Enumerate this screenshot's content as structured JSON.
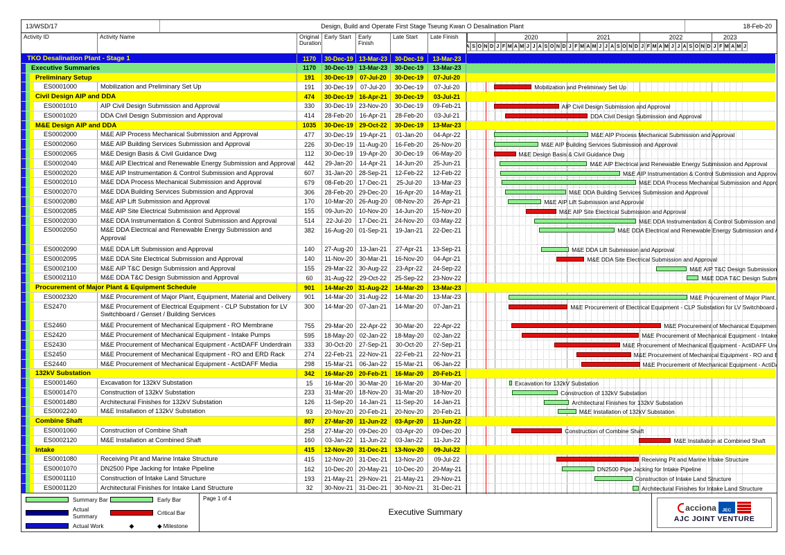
{
  "page_header": {
    "contract_no": "13/WSD/17",
    "title": "Design, Build and Operate First Stage Tseung Kwan O Desalination Plant",
    "data_date": "18-Feb-20"
  },
  "columns": {
    "activity_id": "Activity ID",
    "activity_name": "Activity Name",
    "original_duration": "Original Duration",
    "early_start": "Early Start",
    "early_finish": "Early Finish",
    "late_start": "Late Start",
    "late_finish": "Late Finish"
  },
  "timeline": {
    "years": [
      "2020",
      "2021",
      "2022",
      "2023"
    ],
    "month_letters": [
      "J",
      "F",
      "M",
      "A",
      "M",
      "J",
      "J",
      "A",
      "S",
      "O",
      "N",
      "D"
    ]
  },
  "colors": {
    "critical_bar": "#e01010",
    "early_bar": "#90ee90",
    "band_blue": "#2222dd",
    "band_green": "#7fe97f",
    "band_yellow": "#ffff00",
    "summary_row_blue": "#0d0de0",
    "actual_summary": "#00008b",
    "actual_work": "#1111cc",
    "data_date_line": "#ff0000"
  },
  "rows": [
    {
      "t": "s0",
      "name": "TKO Desalination Plant - Stage 1",
      "dur": "1170",
      "es": "30-Dec-19",
      "ef": "13-Mar-23",
      "ls": "30-Dec-19",
      "lf": "13-Mar-23",
      "h": 1
    },
    {
      "t": "s1",
      "name": "Executive Summaries",
      "dur": "1170",
      "es": "30-Dec-19",
      "ef": "13-Mar-23",
      "ls": "30-Dec-19",
      "lf": "13-Mar-23",
      "h": 1
    },
    {
      "t": "g",
      "name": "Preliminary Setup",
      "dur": "191",
      "es": "30-Dec-19",
      "ef": "07-Jul-20",
      "ls": "30-Dec-19",
      "lf": "07-Jul-20",
      "h": 1
    },
    {
      "t": "a",
      "id": "ES0001000",
      "name": "Mobilization and Preliminary Set Up",
      "dur": "191",
      "es": "30-Dec-19",
      "ef": "07-Jul-20",
      "ls": "30-Dec-19",
      "lf": "07-Jul-20",
      "bar": "red",
      "h": 1
    },
    {
      "t": "g",
      "name": "Civil Design AIP and DDA",
      "dur": "474",
      "es": "30-Dec-19",
      "ef": "16-Apr-21",
      "ls": "30-Dec-19",
      "lf": "03-Jul-21",
      "h": 1
    },
    {
      "t": "a",
      "id": "ES0001010",
      "name": "AIP Civil Design Submission and Approval",
      "dur": "330",
      "es": "30-Dec-19",
      "ef": "23-Nov-20",
      "ls": "30-Dec-19",
      "lf": "09-Feb-21",
      "bar": "red",
      "h": 1
    },
    {
      "t": "a",
      "id": "ES0001020",
      "name": "DDA Civil Design Submission and Approval",
      "dur": "414",
      "es": "28-Feb-20",
      "ef": "16-Apr-21",
      "ls": "28-Feb-20",
      "lf": "03-Jul-21",
      "bar": "red",
      "h": 1
    },
    {
      "t": "g",
      "name": "M&E Design AIP and DDA",
      "dur": "1035",
      "es": "30-Dec-19",
      "ef": "29-Oct-22",
      "ls": "30-Dec-19",
      "lf": "13-Mar-23",
      "h": 1
    },
    {
      "t": "a",
      "id": "ES0002000",
      "name": "M&E AIP Process Mechanical Submission and Approval",
      "dur": "477",
      "es": "30-Dec-19",
      "ef": "19-Apr-21",
      "ls": "01-Jan-20",
      "lf": "04-Apr-22",
      "bar": "green",
      "h": 1
    },
    {
      "t": "a",
      "id": "ES0002060",
      "name": "M&E AIP Building Services Submission and Approval",
      "dur": "226",
      "es": "30-Dec-19",
      "ef": "11-Aug-20",
      "ls": "16-Feb-20",
      "lf": "26-Nov-20",
      "bar": "green",
      "h": 1
    },
    {
      "t": "a",
      "id": "ES0002065",
      "name": "M&E Design Basis & Civil Guidance Dwg",
      "dur": "112",
      "es": "30-Dec-19",
      "ef": "19-Apr-20",
      "ls": "30-Dec-19",
      "lf": "06-May-20",
      "bar": "red",
      "h": 1
    },
    {
      "t": "a",
      "id": "ES0002040",
      "name": "M&E AIP Electrical and Renewable Energy Submission and Approval",
      "dur": "442",
      "es": "29-Jan-20",
      "ef": "14-Apr-21",
      "ls": "14-Jun-20",
      "lf": "25-Jun-21",
      "bar": "green",
      "h": 1
    },
    {
      "t": "a",
      "id": "ES0002020",
      "name": "M&E AIP Instrumentation & Control Submission and Approval",
      "dur": "607",
      "es": "31-Jan-20",
      "ef": "28-Sep-21",
      "ls": "12-Feb-22",
      "lf": "12-Feb-22",
      "bar": "green",
      "h": 1
    },
    {
      "t": "a",
      "id": "ES0002010",
      "name": "M&E DDA Process Mechanical Submission and Approval",
      "dur": "679",
      "es": "08-Feb-20",
      "ef": "17-Dec-21",
      "ls": "25-Jul-20",
      "lf": "13-Mar-23",
      "bar": "green",
      "h": 1
    },
    {
      "t": "a",
      "id": "ES0002070",
      "name": "M&E DDA Building Services Submission and Approval",
      "dur": "306",
      "es": "28-Feb-20",
      "ef": "29-Dec-20",
      "ls": "16-Apr-20",
      "lf": "14-May-21",
      "bar": "green",
      "h": 1
    },
    {
      "t": "a",
      "id": "ES0002080",
      "name": "M&E AIP Lift Submission and Approval",
      "dur": "170",
      "es": "10-Mar-20",
      "ef": "26-Aug-20",
      "ls": "08-Nov-20",
      "lf": "26-Apr-21",
      "bar": "green",
      "h": 1
    },
    {
      "t": "a",
      "id": "ES0002085",
      "name": "M&E AIP Site Electrical Submission and Approval",
      "dur": "155",
      "es": "09-Jun-20",
      "ef": "10-Nov-20",
      "ls": "14-Jun-20",
      "lf": "15-Nov-20",
      "bar": "red",
      "h": 1
    },
    {
      "t": "a",
      "id": "ES0002030",
      "name": "M&E DDA Instrumentation & Control Submission and Approval",
      "dur": "514",
      "es": "22-Jul-20",
      "ef": "17-Dec-21",
      "ls": "24-Nov-20",
      "lf": "03-May-22",
      "bar": "green",
      "h": 1
    },
    {
      "t": "a",
      "id": "ES0002050",
      "name": "M&E DDA Electrical and Renewable Energy Submission and Approval",
      "dur": "382",
      "es": "16-Aug-20",
      "ef": "01-Sep-21",
      "ls": "19-Jan-21",
      "lf": "22-Dec-21",
      "bar": "green",
      "h": 2
    },
    {
      "t": "a",
      "id": "ES0002090",
      "name": "M&E DDA Lift Submission and Approval",
      "dur": "140",
      "es": "27-Aug-20",
      "ef": "13-Jan-21",
      "ls": "27-Apr-21",
      "lf": "13-Sep-21",
      "bar": "green",
      "h": 1
    },
    {
      "t": "a",
      "id": "ES0002095",
      "name": "M&E DDA Site Electrical Submission and Approval",
      "dur": "140",
      "es": "11-Nov-20",
      "ef": "30-Mar-21",
      "ls": "16-Nov-20",
      "lf": "04-Apr-21",
      "bar": "red",
      "h": 1
    },
    {
      "t": "a",
      "id": "ES0002100",
      "name": "M&E AIP T&C Design Submission and Approval",
      "dur": "155",
      "es": "29-Mar-22",
      "ef": "30-Aug-22",
      "ls": "23-Apr-22",
      "lf": "24-Sep-22",
      "bar": "green",
      "h": 1
    },
    {
      "t": "a",
      "id": "ES0002110",
      "name": "M&E DDA T&C Design Submission and Approval",
      "dur": "60",
      "es": "31-Aug-22",
      "ef": "29-Oct-22",
      "ls": "25-Sep-22",
      "lf": "23-Nov-22",
      "bar": "green",
      "h": 1
    },
    {
      "t": "g",
      "name": "Procurement of Major Plant & Equipment Schedule",
      "dur": "901",
      "es": "14-Mar-20",
      "ef": "31-Aug-22",
      "ls": "14-Mar-20",
      "lf": "13-Mar-23",
      "h": 1
    },
    {
      "t": "a",
      "id": "ES0002320",
      "name": "M&E Procurement of Major Plant, Equipment, Material and Delivery",
      "dur": "901",
      "es": "14-Mar-20",
      "ef": "31-Aug-22",
      "ls": "14-Mar-20",
      "lf": "13-Mar-23",
      "bar": "green",
      "h": 1
    },
    {
      "t": "a",
      "id": "ES2470",
      "name": "M&E Procurement of Electrical Equipment - CLP Substation for LV Switchboard / Genset / Building Services",
      "dur": "300",
      "es": "14-Mar-20",
      "ef": "07-Jan-21",
      "ls": "14-Mar-20",
      "lf": "07-Jan-21",
      "bar": "red",
      "h": 2
    },
    {
      "t": "a",
      "id": "ES2460",
      "name": "M&E Procurement of Mechanical Equipment - RO Membrane",
      "dur": "755",
      "es": "29-Mar-20",
      "ef": "22-Apr-22",
      "ls": "30-Mar-20",
      "lf": "22-Apr-22",
      "bar": "red",
      "h": 1
    },
    {
      "t": "a",
      "id": "ES2420",
      "name": "M&E Procurement of Mechanical Equipment - Intake Pumps",
      "dur": "595",
      "es": "18-May-20",
      "ef": "02-Jan-22",
      "ls": "18-May-20",
      "lf": "02-Jan-22",
      "bar": "red",
      "h": 1
    },
    {
      "t": "a",
      "id": "ES2430",
      "name": "M&E Procurement of Mechanical Equipment - ActiDAFF Underdrain",
      "dur": "333",
      "es": "30-Oct-20",
      "ef": "27-Sep-21",
      "ls": "30-Oct-20",
      "lf": "27-Sep-21",
      "bar": "red",
      "h": 1
    },
    {
      "t": "a",
      "id": "ES2450",
      "name": "M&E Procurement of Mechanical Equipment - RO and ERD Rack",
      "dur": "274",
      "es": "22-Feb-21",
      "ef": "22-Nov-21",
      "ls": "22-Feb-21",
      "lf": "22-Nov-21",
      "bar": "red",
      "h": 1
    },
    {
      "t": "a",
      "id": "ES2440",
      "name": "M&E Procurement of Mechanical Equipment - ActiDAFF Media",
      "dur": "298",
      "es": "15-Mar-21",
      "ef": "06-Jan-22",
      "ls": "15-Mar-21",
      "lf": "06-Jan-22",
      "bar": "red",
      "h": 1
    },
    {
      "t": "g",
      "name": "132kV Substation",
      "dur": "342",
      "es": "16-Mar-20",
      "ef": "20-Feb-21",
      "ls": "16-Mar-20",
      "lf": "20-Feb-21",
      "h": 1
    },
    {
      "t": "a",
      "id": "ES0001460",
      "name": "Excavation for 132kV Substation",
      "dur": "15",
      "es": "16-Mar-20",
      "ef": "30-Mar-20",
      "ls": "16-Mar-20",
      "lf": "30-Mar-20",
      "bar": "green",
      "h": 1
    },
    {
      "t": "a",
      "id": "ES0001470",
      "name": "Construction of 132kV Substation",
      "dur": "233",
      "es": "31-Mar-20",
      "ef": "18-Nov-20",
      "ls": "31-Mar-20",
      "lf": "18-Nov-20",
      "bar": "green",
      "h": 1
    },
    {
      "t": "a",
      "id": "ES0001480",
      "name": "Architectural Finishes for 132kV Substation",
      "dur": "126",
      "es": "11-Sep-20",
      "ef": "14-Jan-21",
      "ls": "11-Sep-20",
      "lf": "14-Jan-21",
      "bar": "green",
      "h": 1
    },
    {
      "t": "a",
      "id": "ES0002240",
      "name": "M&E Installation of 132kV Substation",
      "dur": "93",
      "es": "20-Nov-20",
      "ef": "20-Feb-21",
      "ls": "20-Nov-20",
      "lf": "20-Feb-21",
      "bar": "green",
      "h": 1
    },
    {
      "t": "g",
      "name": "Combine Shaft",
      "dur": "807",
      "es": "27-Mar-20",
      "ef": "11-Jun-22",
      "ls": "03-Apr-20",
      "lf": "11-Jun-22",
      "h": 1
    },
    {
      "t": "a",
      "id": "ES0001060",
      "name": "Construction of Combine Shaft",
      "dur": "258",
      "es": "27-Mar-20",
      "ef": "09-Dec-20",
      "ls": "03-Apr-20",
      "lf": "09-Dec-20",
      "bar": "red",
      "h": 1
    },
    {
      "t": "a",
      "id": "ES0002120",
      "name": "M&E Installation at Combined Shaft",
      "dur": "160",
      "es": "03-Jan-22",
      "ef": "11-Jun-22",
      "ls": "03-Jan-22",
      "lf": "11-Jun-22",
      "bar": "red",
      "h": 1
    },
    {
      "t": "g",
      "name": "Intake",
      "dur": "415",
      "es": "12-Nov-20",
      "ef": "31-Dec-21",
      "ls": "13-Nov-20",
      "lf": "09-Jul-22",
      "h": 1
    },
    {
      "t": "a",
      "id": "ES0001080",
      "name": "Receiving Pit and Marine Intake Structure",
      "dur": "415",
      "es": "12-Nov-20",
      "ef": "31-Dec-21",
      "ls": "13-Nov-20",
      "lf": "09-Jul-22",
      "bar": "red",
      "h": 1
    },
    {
      "t": "a",
      "id": "ES0001070",
      "name": "DN2500 Pipe Jacking for Intake Pipeline",
      "dur": "162",
      "es": "10-Dec-20",
      "ef": "20-May-21",
      "ls": "10-Dec-20",
      "lf": "20-May-21",
      "bar": "green",
      "h": 1
    },
    {
      "t": "a",
      "id": "ES0001110",
      "name": "Construction of Intake Land Structure",
      "dur": "193",
      "es": "21-May-21",
      "ef": "29-Nov-21",
      "ls": "21-May-21",
      "lf": "29-Nov-21",
      "bar": "green",
      "h": 1
    },
    {
      "t": "a",
      "id": "ES0001120",
      "name": "Architectural Finishes for Intake Land Structure",
      "dur": "32",
      "es": "30-Nov-21",
      "ef": "31-Dec-21",
      "ls": "30-Nov-21",
      "lf": "31-Dec-21",
      "bar": "green",
      "h": 1
    }
  ],
  "legend": {
    "items": [
      {
        "label": "Summary Bar",
        "swatch": "summary"
      },
      {
        "label": "Early Bar",
        "swatch": "early"
      },
      {
        "label": "Actual Summary",
        "swatch": "actual_summary"
      },
      {
        "label": "Critical Bar",
        "swatch": "critical"
      },
      {
        "label": "Actual Work",
        "swatch": "actual_work"
      },
      {
        "label": "Milestone",
        "swatch": "milestone"
      }
    ]
  },
  "footer": {
    "page_info": "Page 1 of 4",
    "report_title": "Executive Summary",
    "logos": {
      "acciona": "acciona",
      "jec": "JEC",
      "cscec": "CSCEC",
      "joint_venture": "AJC JOINT VENTURE"
    }
  }
}
